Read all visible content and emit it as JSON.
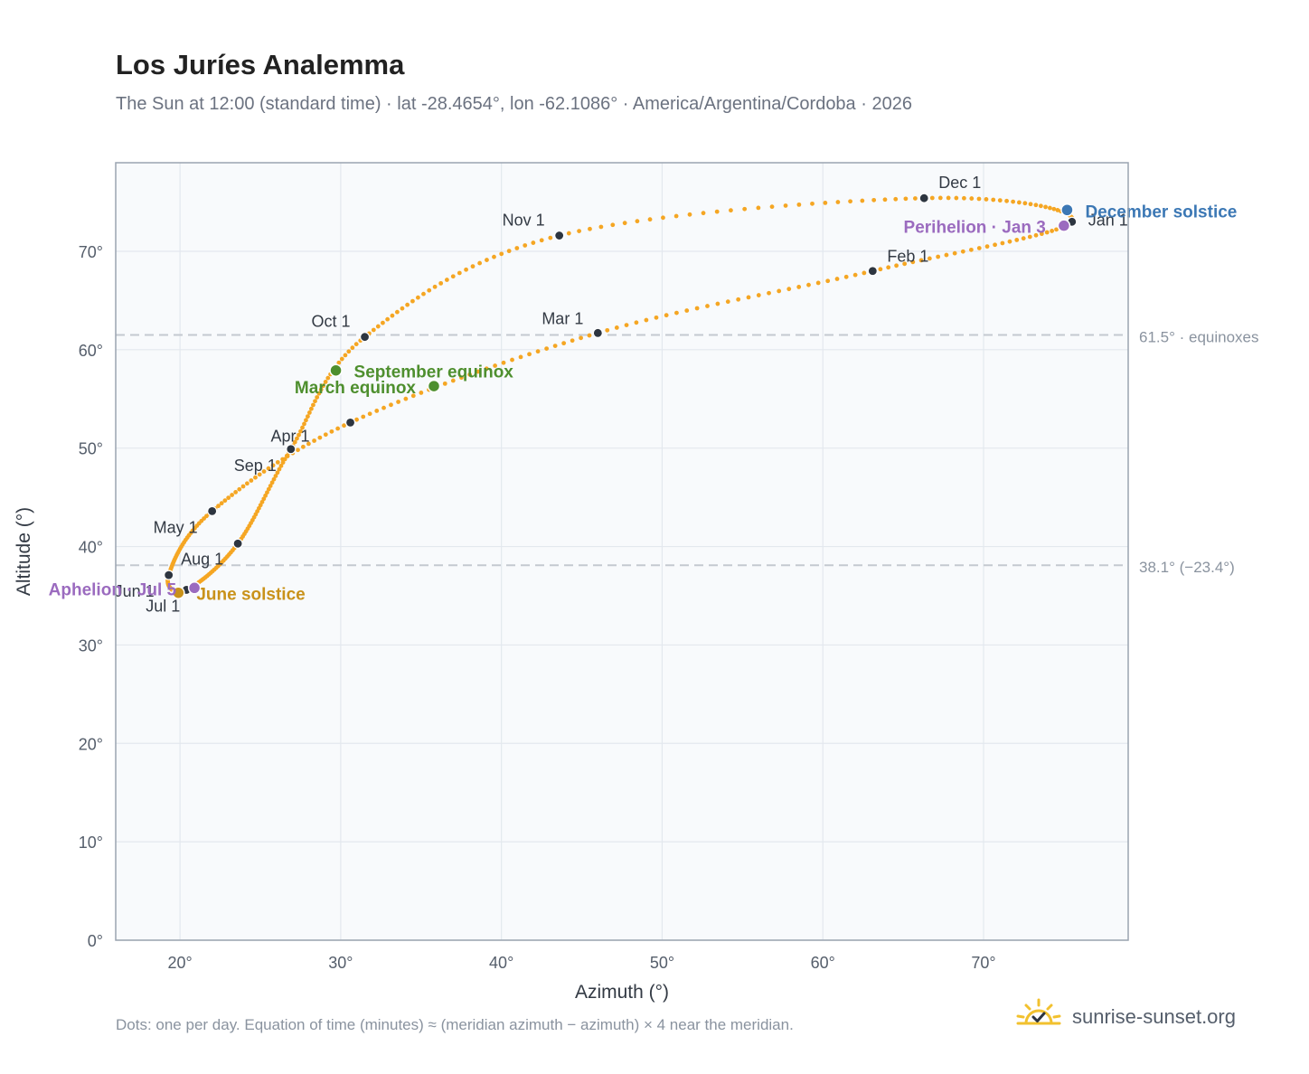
{
  "header": {
    "title": "Los Juríes Analemma",
    "subtitle": "The Sun at 12:00 (standard time) · lat -28.4654°, lon -62.1086° · America/Argentina/Cordoba · 2026"
  },
  "footer": {
    "note": "Dots: one per day. Equation of time (minutes) ≈ (meridian azimuth − azimuth) × 4 near the meridian.",
    "brand": "sunrise-sunset.org"
  },
  "colors": {
    "curve": "#f5a623",
    "month_marker": "#2d3540",
    "equinox": "#4e8f2e",
    "june_solstice": "#c9921a",
    "december_solstice": "#3c78b5",
    "apsis": "#9b6bbf",
    "reference_line": "#c4c9d0",
    "plot_bg": "#f8fafc",
    "plot_border": "#9aa4b0",
    "grid": "#e3e8ee",
    "brand_sun": "#f2c12e"
  },
  "icons": {
    "brand_logo": "sun-check-icon"
  },
  "chart_data": {
    "type": "scatter",
    "title": "Los Juríes Analemma",
    "subtitle": "The Sun at 12:00 (standard time) · lat -28.4654°, lon -62.1086° · America/Argentina/Cordoba · 2026",
    "xlabel": "Azimuth (°)",
    "ylabel": "Altitude (°)",
    "xlim": [
      16,
      79
    ],
    "ylim": [
      0,
      79
    ],
    "x_ticks": [
      20,
      30,
      40,
      50,
      60,
      70
    ],
    "y_ticks": [
      0,
      10,
      20,
      30,
      40,
      50,
      60,
      70
    ],
    "x_tick_labels": [
      "20°",
      "30°",
      "40°",
      "50°",
      "60°",
      "70°"
    ],
    "y_tick_labels": [
      "0°",
      "10°",
      "20°",
      "30°",
      "40°",
      "50°",
      "60°",
      "70°"
    ],
    "grid": true,
    "month_points": [
      {
        "label": "Jan 1",
        "x": 75.5,
        "y": 73.0
      },
      {
        "label": "Feb 1",
        "x": 63.1,
        "y": 68.0
      },
      {
        "label": "Mar 1",
        "x": 46.0,
        "y": 61.7
      },
      {
        "label": "Apr 1",
        "x": 30.6,
        "y": 52.6
      },
      {
        "label": "May 1",
        "x": 22.0,
        "y": 43.6
      },
      {
        "label": "Jun 1",
        "x": 19.3,
        "y": 37.1
      },
      {
        "label": "Jul 1",
        "x": 20.4,
        "y": 35.6
      },
      {
        "label": "Aug 1",
        "x": 23.6,
        "y": 40.3
      },
      {
        "label": "Sep 1",
        "x": 26.9,
        "y": 49.9
      },
      {
        "label": "Oct 1",
        "x": 31.5,
        "y": 61.3
      },
      {
        "label": "Nov 1",
        "x": 43.6,
        "y": 71.6
      },
      {
        "label": "Dec 1",
        "x": 66.3,
        "y": 75.4
      }
    ],
    "events": [
      {
        "label": "March equinox",
        "x": 35.8,
        "y": 56.3,
        "kind": "equinox"
      },
      {
        "label": "September equinox",
        "x": 29.7,
        "y": 57.9,
        "kind": "equinox"
      },
      {
        "label": "June solstice",
        "x": 19.9,
        "y": 35.3,
        "kind": "june_solstice"
      },
      {
        "label": "December solstice",
        "x": 75.2,
        "y": 74.2,
        "kind": "december_solstice"
      },
      {
        "label": "Aphelion · Jul 5",
        "x": 20.9,
        "y": 35.8,
        "kind": "apsis"
      },
      {
        "label": "Perihelion · Jan 3",
        "x": 75.0,
        "y": 72.6,
        "kind": "apsis"
      }
    ],
    "reference_lines": [
      {
        "y": 61.5,
        "label": "61.5° · equinoxes"
      },
      {
        "y": 38.1,
        "label": "38.1° (−23.4°)"
      }
    ]
  }
}
